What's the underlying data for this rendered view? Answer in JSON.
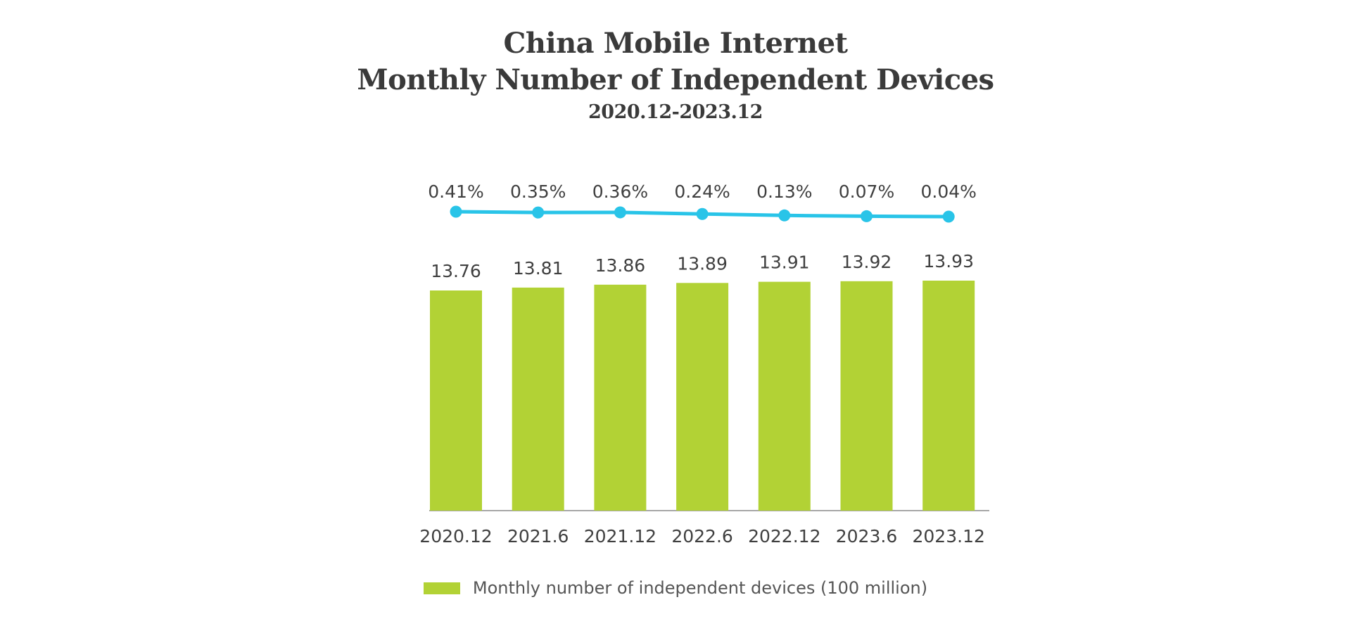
{
  "chart_data": {
    "type": "bar",
    "title_lines": [
      "China Mobile Internet",
      "Monthly Number of Independent Devices"
    ],
    "subtitle": "2020.12-2023.12",
    "categories": [
      "2020.12",
      "2021.6",
      "2021.12",
      "2022.6",
      "2022.12",
      "2023.6",
      "2023.12"
    ],
    "series": [
      {
        "name": "Monthly number of independent devices (100 million)",
        "type": "bar",
        "values": [
          13.76,
          13.81,
          13.86,
          13.89,
          13.91,
          13.92,
          13.93
        ],
        "labels": [
          "13.76",
          "13.81",
          "13.86",
          "13.89",
          "13.91",
          "13.92",
          "13.93"
        ],
        "color": "#b2d235"
      },
      {
        "type": "line",
        "values": [
          0.41,
          0.35,
          0.36,
          0.24,
          0.13,
          0.07,
          0.04
        ],
        "labels": [
          "0.41%",
          "0.35%",
          "0.36%",
          "0.24%",
          "0.13%",
          "0.07%",
          "0.04%"
        ],
        "color": "#29c4e8"
      }
    ],
    "xlabel": "",
    "ylabel": "",
    "grid": false,
    "legend_position": "bottom"
  }
}
